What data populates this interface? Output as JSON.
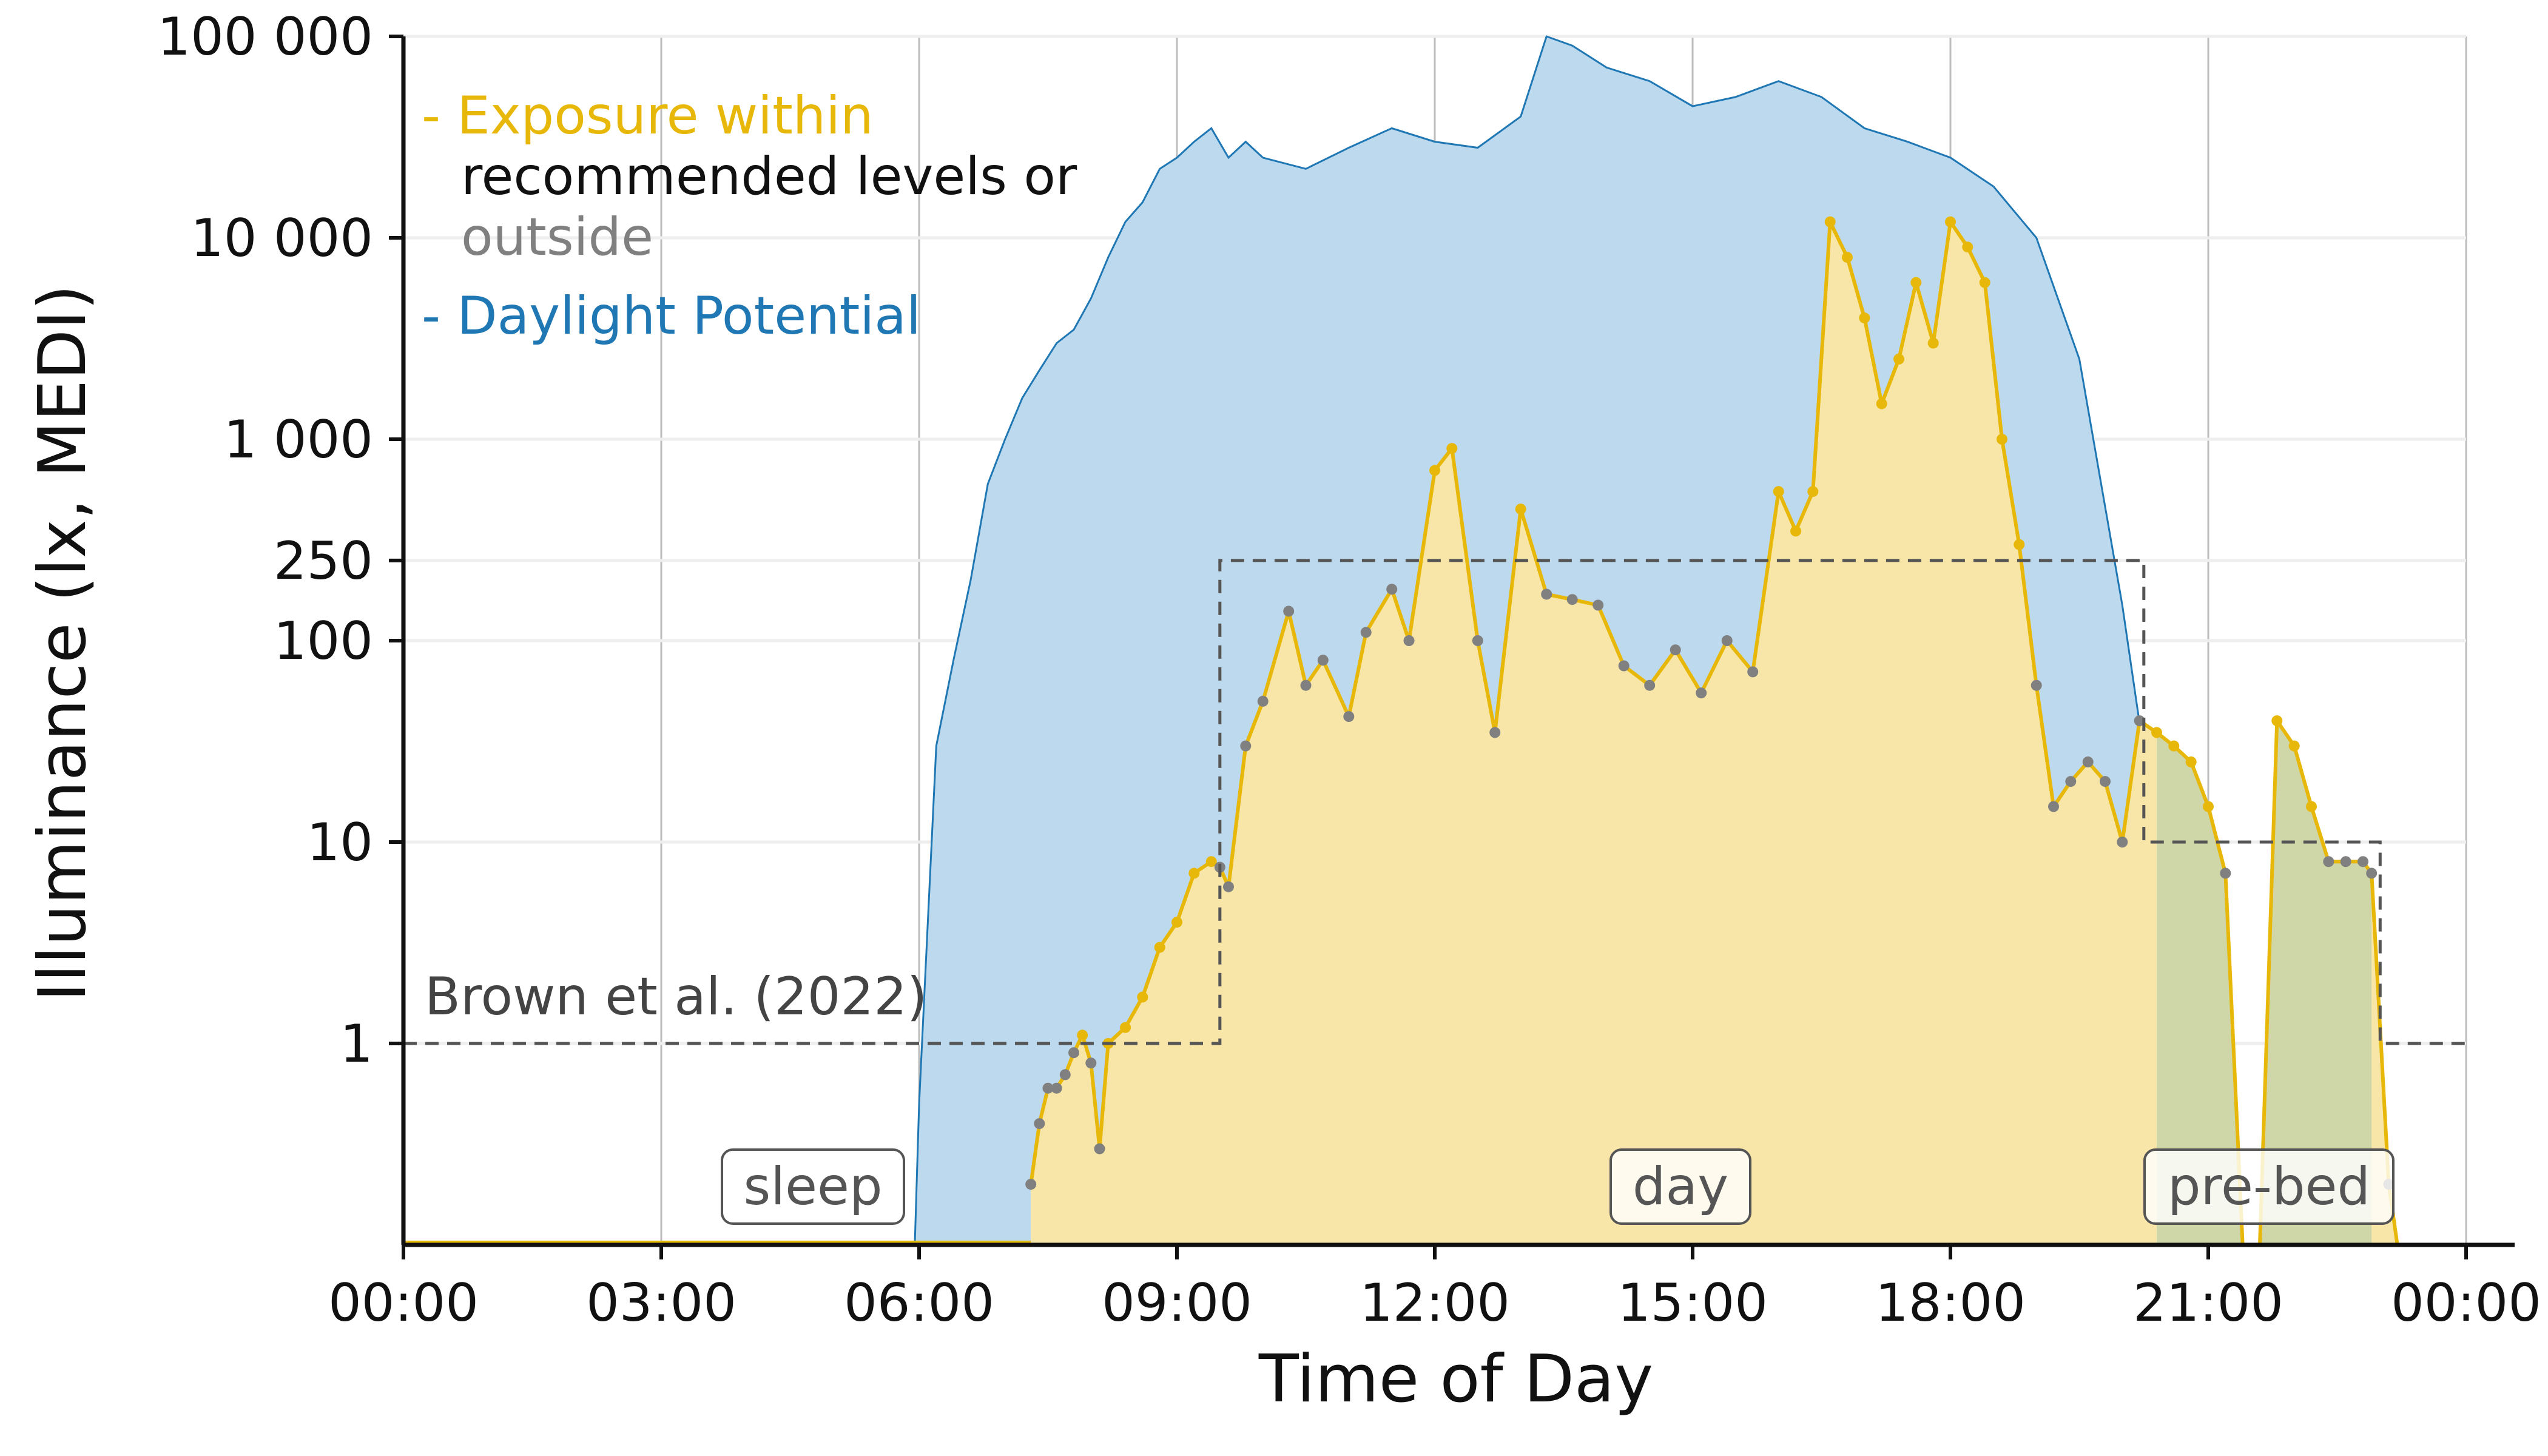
{
  "chart_data": {
    "type": "area",
    "xlabel": "Time of Day",
    "ylabel": "Illuminance (lx, MEDI)",
    "x_unit": "hours",
    "xlim": [
      0,
      24
    ],
    "xticks": [
      "00:00",
      "03:00",
      "06:00",
      "09:00",
      "12:00",
      "15:00",
      "18:00",
      "21:00",
      "00:00"
    ],
    "yscale": "log",
    "ylim": [
      0.1,
      100000
    ],
    "yticks": [
      {
        "value": 1,
        "label": "1"
      },
      {
        "value": 10,
        "label": "10"
      },
      {
        "value": 100,
        "label": "100"
      },
      {
        "value": 250,
        "label": "250"
      },
      {
        "value": 1000,
        "label": "1 000"
      },
      {
        "value": 10000,
        "label": "10 000"
      },
      {
        "value": 100000,
        "label": "100 000"
      }
    ],
    "grid": "vertical at time ticks, horizontal at y ticks",
    "legend": {
      "placement": "top-left",
      "line1": "- Exposure within",
      "line2": "recommended levels or",
      "line3": "outside",
      "line4": "- Daylight Potential"
    },
    "colors": {
      "exposure": "#E7B809",
      "exposure_fill": "#F8E6A8",
      "outside": "#808080",
      "daylight_line": "#1F77B4",
      "daylight_fill": "#BDD9EE",
      "overlap_fill": "#C8D2A8",
      "reference": "#555555"
    },
    "series": [
      {
        "name": "Daylight Potential",
        "x": [
          5.95,
          6.0,
          6.2,
          6.4,
          6.6,
          6.8,
          7.0,
          7.2,
          7.4,
          7.6,
          7.8,
          8.0,
          8.2,
          8.4,
          8.6,
          8.8,
          9.0,
          9.2,
          9.4,
          9.6,
          9.8,
          10.0,
          10.5,
          11.0,
          11.5,
          12.0,
          12.5,
          13.0,
          13.3,
          13.6,
          14.0,
          14.5,
          15.0,
          15.5,
          16.0,
          16.5,
          17.0,
          17.5,
          18.0,
          18.5,
          19.0,
          19.5,
          20.0,
          20.3,
          20.5,
          20.7
        ],
        "values": [
          0.1,
          0.5,
          30,
          80,
          200,
          600,
          1000,
          1600,
          2200,
          3000,
          3500,
          5000,
          8000,
          12000,
          15000,
          22000,
          25000,
          30000,
          35000,
          25000,
          30000,
          25000,
          22000,
          28000,
          35000,
          30000,
          28000,
          40000,
          100000,
          90000,
          70000,
          60000,
          45000,
          50000,
          60000,
          50000,
          35000,
          30000,
          25000,
          18000,
          10000,
          2500,
          150,
          20,
          2,
          0.1
        ]
      },
      {
        "name": "Exposure within recommended levels or outside",
        "x": [
          7.3,
          7.4,
          7.5,
          7.6,
          7.7,
          7.8,
          7.9,
          8.0,
          8.1,
          8.2,
          8.4,
          8.6,
          8.8,
          9.0,
          9.2,
          9.4,
          9.5,
          9.6,
          9.8,
          10.0,
          10.3,
          10.5,
          10.7,
          11.0,
          11.2,
          11.5,
          11.7,
          12.0,
          12.2,
          12.5,
          12.7,
          13.0,
          13.3,
          13.6,
          13.9,
          14.2,
          14.5,
          14.8,
          15.1,
          15.4,
          15.7,
          16.0,
          16.2,
          16.4,
          16.6,
          16.8,
          17.0,
          17.2,
          17.4,
          17.6,
          17.8,
          18.0,
          18.2,
          18.4,
          18.6,
          18.8,
          19.0,
          19.2,
          19.4,
          19.6,
          19.8,
          20.0,
          20.2,
          20.4,
          20.6,
          20.8,
          21.0,
          21.2,
          21.4,
          21.6,
          21.8,
          22.0,
          22.2,
          22.4,
          22.6,
          22.8,
          22.9,
          23.1,
          23.2,
          24.0
        ],
        "values": [
          0.2,
          0.4,
          0.6,
          0.6,
          0.7,
          0.9,
          1.1,
          0.8,
          0.3,
          1.0,
          1.2,
          1.7,
          3.0,
          4.0,
          7.0,
          8.0,
          7.5,
          6.0,
          30,
          50,
          140,
          60,
          80,
          42,
          110,
          180,
          100,
          700,
          900,
          100,
          35,
          450,
          170,
          160,
          150,
          75,
          60,
          90,
          55,
          100,
          70,
          550,
          350,
          550,
          12000,
          8000,
          4000,
          1500,
          2500,
          6000,
          3000,
          12000,
          9000,
          6000,
          1000,
          300,
          60,
          15,
          20,
          25,
          20,
          10,
          40,
          35,
          30,
          25,
          15,
          7,
          0.1,
          0.1,
          40,
          30,
          15,
          8,
          8,
          8,
          7,
          0.2,
          0.1,
          0.1
        ]
      }
    ],
    "reference": {
      "name": "Brown et al. (2022)",
      "steps": [
        {
          "from": 0,
          "to": 9.5,
          "value": 1
        },
        {
          "from": 9.5,
          "to": 20.25,
          "value": 250
        },
        {
          "from": 20.25,
          "to": 23.0,
          "value": 10
        },
        {
          "from": 23.0,
          "to": 24,
          "value": 1
        }
      ]
    },
    "phases": [
      {
        "label": "sleep",
        "from": 0,
        "to": 9.5
      },
      {
        "label": "day",
        "from": 9.5,
        "to": 20.25
      },
      {
        "label": "pre-bed",
        "from": 20.25,
        "to": 23.0
      }
    ]
  }
}
